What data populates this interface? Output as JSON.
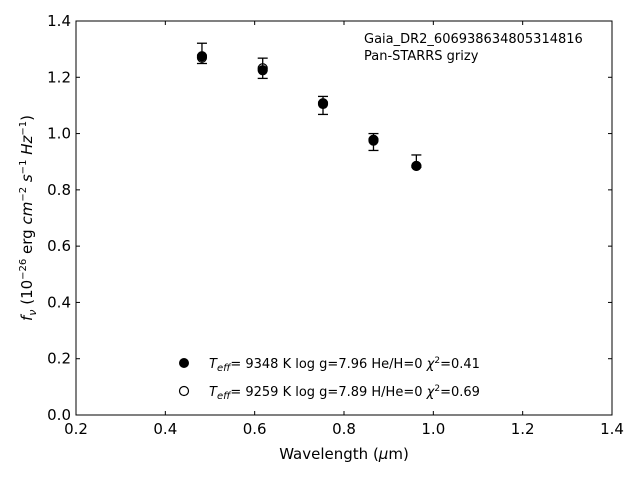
{
  "chart_data": {
    "type": "scatter",
    "xlabel": "Wavelength (μm)",
    "ylabel": "f_ν (10^-26 erg cm^-2 s^-1 Hz^-1)",
    "xlim": [
      0.2,
      1.4
    ],
    "ylim": [
      0.0,
      1.4
    ],
    "xticks": [
      "0.2",
      "0.4",
      "0.6",
      "0.8",
      "1.0",
      "1.2",
      "1.4"
    ],
    "yticks": [
      "0.0",
      "0.2",
      "0.4",
      "0.6",
      "0.8",
      "1.0",
      "1.2",
      "1.4"
    ],
    "grid": false,
    "annotation": [
      "Gaia_DR2_606938634805314816",
      "Pan-STARRS grizy"
    ],
    "observed": {
      "x": [
        0.482,
        0.618,
        0.753,
        0.866,
        0.962
      ],
      "y": [
        1.285,
        1.232,
        1.1,
        0.97,
        0.902
      ],
      "yerr": [
        0.036,
        0.036,
        0.032,
        0.03,
        0.022
      ]
    },
    "series": [
      {
        "name": "T_eff= 9348 K log g=7.96 He/H=0 χ²=0.41",
        "marker": "filled",
        "x": [
          0.482,
          0.618,
          0.753,
          0.866,
          0.962
        ],
        "y": [
          1.275,
          1.225,
          1.108,
          0.978,
          0.885
        ]
      },
      {
        "name": "T_eff= 9259 K log g=7.89 H/He=0 χ²=0.69",
        "marker": "open",
        "x": [
          0.482,
          0.618,
          0.753,
          0.866,
          0.962
        ],
        "y": [
          1.27,
          1.232,
          1.105,
          0.975,
          0.885
        ]
      }
    ],
    "legend_position": "lower-center"
  }
}
